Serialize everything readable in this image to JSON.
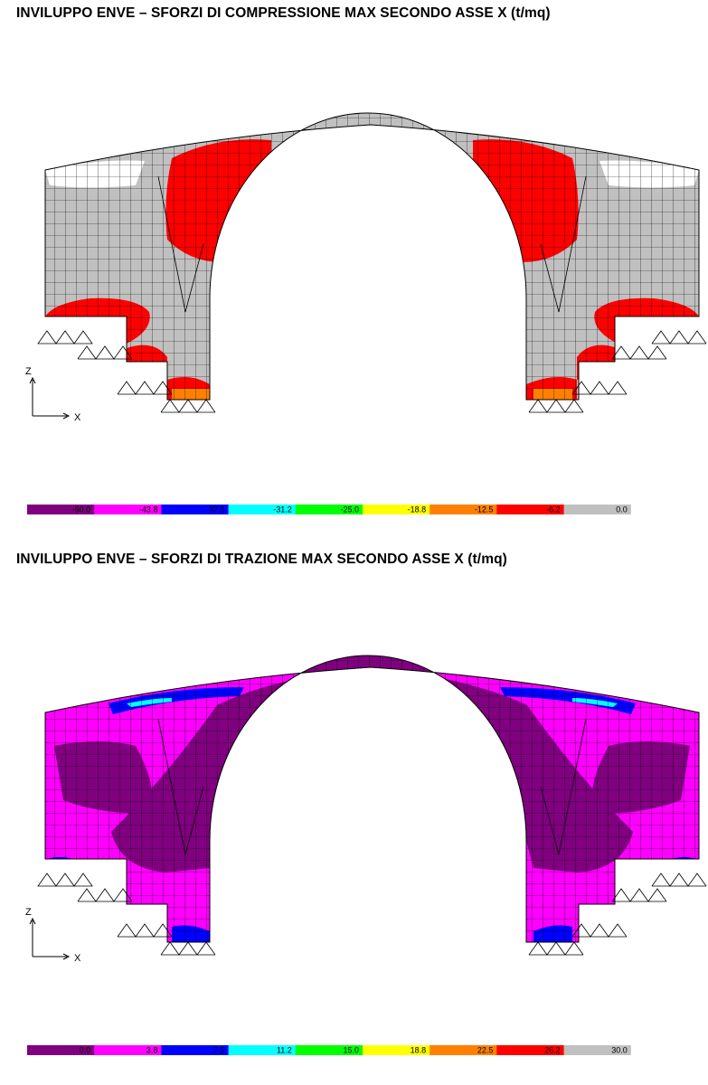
{
  "panels": [
    {
      "title": "INVILUPPO ENVE – SFORZI DI COMPRESSIONE MAX SECONDO ASSE X (t/mq)",
      "axis_vertical": "Z",
      "axis_horizontal": "X",
      "colorbar": {
        "colors": [
          "#800080",
          "#ff00ff",
          "#0000ff",
          "#00ffff",
          "#00ff00",
          "#ffff00",
          "#ff8000",
          "#ff0000",
          "#c0c0c0",
          "#ffffff"
        ],
        "labels": [
          "-50.0",
          "-43.8",
          "-37.5",
          "-31.2",
          "-25.0",
          "-18.8",
          "-12.5",
          "-6.2",
          "0.0"
        ]
      }
    },
    {
      "title": "INVILUPPO ENVE – SFORZI DI TRAZIONE MAX SECONDO ASSE X (t/mq)",
      "axis_vertical": "Z",
      "axis_horizontal": "X",
      "colorbar": {
        "colors": [
          "#800080",
          "#ff00ff",
          "#0000ff",
          "#00ffff",
          "#00ff00",
          "#ffff00",
          "#ff8000",
          "#ff0000",
          "#c0c0c0",
          "#ffffff"
        ],
        "labels": [
          "0.0",
          "3.8",
          "7.5",
          "11.2",
          "15.0",
          "18.8",
          "22.5",
          "26.2",
          "30.0"
        ]
      }
    }
  ]
}
